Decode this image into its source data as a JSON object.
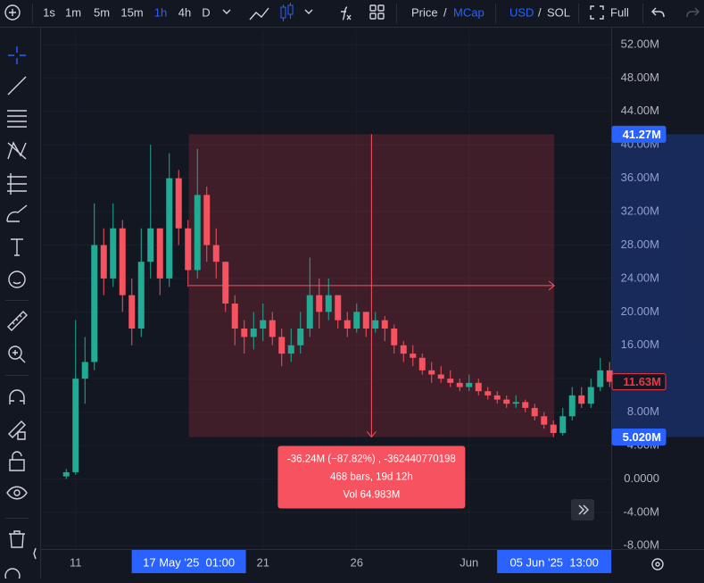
{
  "toolbar": {
    "intervals": [
      "1s",
      "1m",
      "5m",
      "15m",
      "1h",
      "4h",
      "D"
    ],
    "active_interval": 4,
    "price": "Price",
    "separator": "/",
    "mcap": "MCap",
    "usd": "USD",
    "sol": "SOL",
    "full": "Full"
  },
  "chart_data": {
    "type": "candlestick",
    "x": [
      -12,
      0,
      12,
      24,
      36,
      48,
      60,
      72,
      84,
      96,
      108,
      120,
      132,
      144,
      156,
      168,
      180,
      192,
      204,
      216,
      228,
      240,
      252,
      264,
      276,
      288,
      300,
      312,
      324,
      336,
      348,
      360,
      372,
      384,
      396,
      408,
      420,
      432,
      444,
      456,
      468,
      480,
      492,
      504,
      516,
      528,
      540,
      552,
      564,
      576,
      588,
      600,
      612,
      624,
      636,
      648,
      660,
      672,
      684
    ],
    "open": [
      0.3,
      0.8,
      12,
      14,
      28,
      24,
      30,
      22,
      18,
      26,
      30,
      24,
      36,
      30,
      25,
      34,
      28,
      26,
      21,
      18,
      17,
      18,
      19,
      17,
      15,
      16,
      18,
      22,
      20,
      22,
      19,
      18,
      20,
      18,
      19,
      18,
      16,
      15,
      14.5,
      13,
      12.5,
      12,
      11.5,
      11,
      11.5,
      10.5,
      10,
      9.5,
      9,
      9.2,
      8.5,
      7.5,
      6.5,
      5.5,
      7.5,
      10,
      9,
      11,
      13
    ],
    "high": [
      1.2,
      19,
      17,
      33,
      30,
      33,
      31,
      24,
      30,
      40,
      30,
      39,
      37,
      31,
      39.5,
      35,
      30,
      26,
      22,
      19,
      20,
      21,
      20,
      18,
      18,
      20,
      26.5,
      24,
      24,
      22,
      20,
      21,
      20,
      20,
      19.5,
      18.5,
      16.5,
      16,
      15,
      14,
      13.5,
      13,
      12,
      12.5,
      12,
      11,
      10.5,
      10,
      10,
      9.5,
      9,
      8,
      7,
      8.5,
      11,
      11,
      12,
      14.5,
      14
    ],
    "low": [
      0,
      0.5,
      9,
      13,
      22,
      23,
      20,
      16,
      17,
      24,
      22,
      23,
      28,
      23,
      24,
      26,
      24,
      20,
      16,
      15,
      15.5,
      16.5,
      16,
      13.5,
      14,
      15,
      17,
      18,
      19,
      18,
      17,
      17.5,
      17,
      17.5,
      16.5,
      15,
      14,
      13.5,
      12.5,
      11.5,
      11.5,
      11,
      10.5,
      10.5,
      10,
      9.5,
      9,
      8.5,
      8.5,
      8,
      7,
      6,
      5,
      5.2,
      7,
      8.5,
      8.5,
      10.5,
      11
    ],
    "close": [
      0.8,
      12,
      14,
      28,
      24,
      30,
      22,
      18,
      26,
      30,
      24,
      36,
      30,
      25,
      34,
      28,
      26,
      21,
      18,
      17,
      18,
      19,
      17,
      15,
      16,
      18,
      22,
      20,
      22,
      19,
      18,
      20,
      18,
      19,
      18,
      16,
      15,
      14.5,
      13,
      12.5,
      12,
      11.5,
      11,
      11.5,
      10.5,
      10,
      9.5,
      9,
      9.2,
      8.5,
      7.5,
      6.5,
      5.5,
      7.5,
      10,
      9,
      11,
      13,
      11.63
    ],
    "up_color": "#22ab94",
    "down_color": "#f7525f",
    "xlim": [
      -42,
      686
    ],
    "ylim": [
      -8.4,
      53.6
    ],
    "xticks": [
      {
        "value": 0,
        "label": "11"
      },
      {
        "value": 240,
        "label": "21"
      },
      {
        "value": 360,
        "label": "26"
      },
      {
        "value": 504,
        "label": "Jun"
      }
    ],
    "yticks": [
      {
        "value": 52,
        "label": "52.00M"
      },
      {
        "value": 48,
        "label": "48.00M"
      },
      {
        "value": 44,
        "label": "44.00M"
      },
      {
        "value": 40,
        "label": "40.00M"
      },
      {
        "value": 36,
        "label": "36.00M"
      },
      {
        "value": 32,
        "label": "32.00M"
      },
      {
        "value": 28,
        "label": "28.00M"
      },
      {
        "value": 24,
        "label": "24.00M"
      },
      {
        "value": 20,
        "label": "20.00M"
      },
      {
        "value": 16,
        "label": "16.00M"
      },
      {
        "value": 12,
        "label": "12.00M"
      },
      {
        "value": 8,
        "label": "8.00M"
      },
      {
        "value": 4,
        "label": "4.00M"
      },
      {
        "value": 0,
        "label": "0.0000"
      },
      {
        "value": -4,
        "label": "-4.00M"
      },
      {
        "value": -8,
        "label": "-8.00M"
      }
    ],
    "price_labels": [
      {
        "value": 41.27,
        "label": "41.27M",
        "color": "#2962ff"
      },
      {
        "value": 11.63,
        "label": "11.63M",
        "color": "#f23645",
        "outline": true
      },
      {
        "value": 5.02,
        "label": "5.020M",
        "color": "#2962ff"
      }
    ],
    "time_labels": [
      {
        "value": 145,
        "label": "17 May '25  01:00"
      },
      {
        "value": 613,
        "label": "05 Jun '25  13:00"
      }
    ],
    "measure": {
      "x": [
        145,
        613
      ],
      "y": [
        41.27,
        5.02
      ],
      "change": "-36.24M (−87.82%) , -362440770198",
      "bars": "468 bars, 19d 12h",
      "volume": "Vol 64.983M"
    }
  }
}
